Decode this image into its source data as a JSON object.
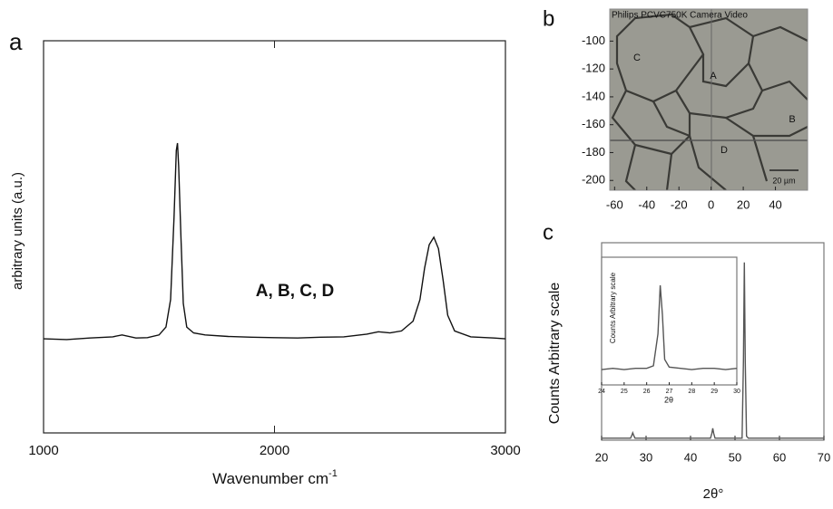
{
  "chart_data": [
    {
      "type": "line",
      "label": "a",
      "annotation": "A, B, C, D",
      "x_label": "Wavenumber cm",
      "x_label_sup": "-1",
      "y_label": "arbitrary units (a.u.)",
      "x": [
        1000,
        1100,
        1200,
        1300,
        1340,
        1400,
        1450,
        1500,
        1530,
        1550,
        1565,
        1575,
        1580,
        1585,
        1595,
        1605,
        1620,
        1650,
        1700,
        1800,
        1900,
        2000,
        2100,
        2200,
        2300,
        2400,
        2450,
        2500,
        2550,
        2600,
        2630,
        2650,
        2670,
        2690,
        2710,
        2730,
        2750,
        2780,
        2850,
        2950,
        3000
      ],
      "series": [
        {
          "color": "#111111",
          "values": [
            2.4,
            2.38,
            2.42,
            2.45,
            2.5,
            2.42,
            2.43,
            2.5,
            2.7,
            3.4,
            5.5,
            7.2,
            7.39,
            6.8,
            5.0,
            3.3,
            2.7,
            2.55,
            2.5,
            2.46,
            2.44,
            2.43,
            2.42,
            2.44,
            2.45,
            2.52,
            2.58,
            2.55,
            2.6,
            2.85,
            3.4,
            4.2,
            4.8,
            4.99,
            4.7,
            3.9,
            3.0,
            2.6,
            2.45,
            2.42,
            2.4
          ]
        }
      ],
      "xlim": [
        1000,
        3000
      ],
      "xticks": [
        1000,
        2000,
        3000
      ],
      "ylim": [
        0,
        10
      ]
    },
    {
      "type": "image",
      "label": "b",
      "caption": "Philips PCVC750K Camera Video",
      "scale_bar": "20 µm",
      "regions": [
        "A",
        "B",
        "C",
        "D"
      ],
      "xlim": [
        -63,
        60
      ],
      "xticks": [
        -60,
        -40,
        -20,
        0,
        20,
        40
      ],
      "ylim": [
        -207,
        -77
      ],
      "yticks": [
        -100,
        -120,
        -140,
        -160,
        -180,
        -200
      ]
    },
    {
      "type": "line",
      "label": "c",
      "x_label": "2θ°",
      "y_label": "Counts  Arbitrary scale",
      "x": [
        20,
        26.5,
        26.8,
        27,
        27.2,
        27.5,
        44.5,
        44.8,
        45,
        45.2,
        45.5,
        51.6,
        51.9,
        52.1,
        52.3,
        52.6,
        53,
        70
      ],
      "series": [
        {
          "color": "#555555",
          "values": [
            1,
            1,
            2.5,
            3.7,
            2.5,
            1,
            1,
            3.5,
            6,
            3.5,
            1,
            1,
            40,
            90,
            40,
            2,
            1,
            1
          ]
        }
      ],
      "xlim": [
        20,
        70
      ],
      "xticks": [
        20,
        30,
        40,
        50,
        60,
        70
      ],
      "ylim": [
        0,
        100
      ],
      "inset": {
        "type": "line",
        "x_label": "2θ",
        "y_label": "Counts  Arbitrary scale",
        "x": [
          24,
          24.5,
          25,
          25.5,
          26,
          26.3,
          26.5,
          26.6,
          26.7,
          26.8,
          27,
          27.5,
          28,
          28.5,
          29,
          29.5,
          30
        ],
        "series": [
          {
            "color": "#555555",
            "values": [
              12,
              13,
              12,
              13,
              13,
              15,
              40,
              78,
              55,
              20,
              14,
              13,
              12,
              13,
              13,
              12,
              13
            ]
          }
        ],
        "xlim": [
          24,
          30
        ],
        "xticks": [
          24,
          25,
          26,
          27,
          28,
          29,
          30
        ],
        "ylim": [
          0,
          100
        ]
      }
    }
  ]
}
